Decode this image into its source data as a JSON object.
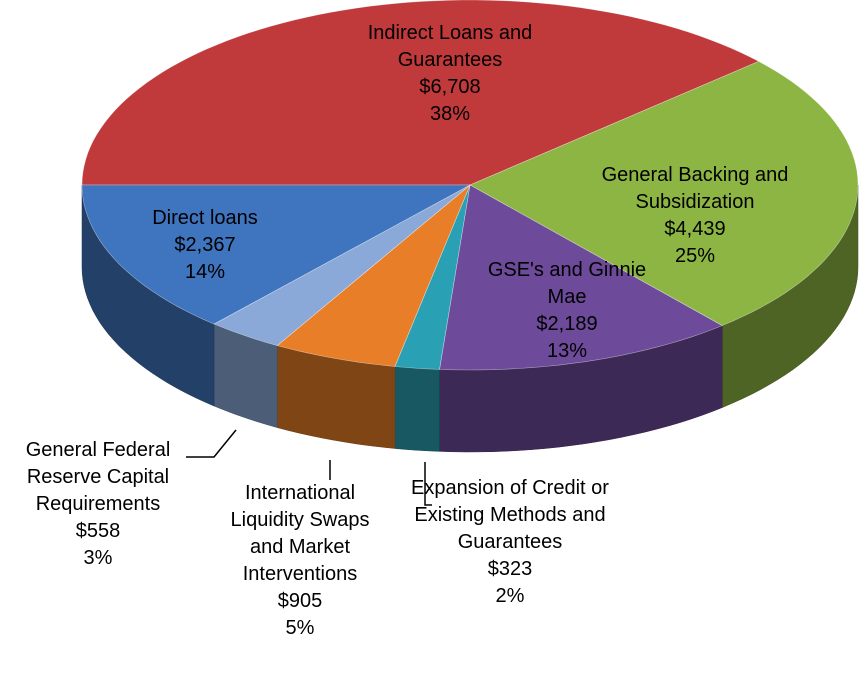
{
  "chart_data": {
    "type": "pie",
    "categories": [
      "Indirect Loans and Guarantees",
      "General Backing and Subsidization",
      "GSE's and Ginnie Mae",
      "Expansion of Credit or Existing Methods and Guarantees",
      "International Liquidity Swaps and Market Interventions",
      "General Federal Reserve Capital Requirements",
      "Direct loans"
    ],
    "values": [
      6708,
      4439,
      2189,
      323,
      905,
      558,
      2367
    ],
    "value_labels": [
      "$6,708",
      "$4,439",
      "$2,189",
      "$323",
      "$905",
      "$558",
      "$2,367"
    ],
    "percents": [
      38,
      25,
      13,
      2,
      5,
      3,
      14
    ],
    "percent_labels": [
      "38%",
      "25%",
      "13%",
      "2%",
      "5%",
      "3%",
      "14%"
    ],
    "colors": [
      "#c0393b",
      "#8db544",
      "#6e4a9a",
      "#2aa0b4",
      "#e87e27",
      "#8aa9d8",
      "#3f74bf"
    ]
  }
}
